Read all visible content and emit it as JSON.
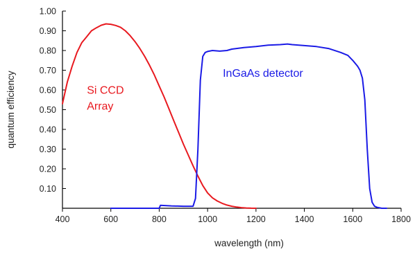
{
  "chart_data": {
    "type": "line",
    "title": "",
    "xlabel": "wavelength (nm)",
    "ylabel": "quantum efficiency",
    "xlim": [
      400,
      1800
    ],
    "ylim": [
      0,
      1.0
    ],
    "x_ticks": [
      "400",
      "600",
      "800",
      "1000",
      "1200",
      "1400",
      "1600",
      "1800"
    ],
    "y_ticks": [
      "0.10",
      "0.20",
      "0.30",
      "0.40",
      "0.50",
      "0.60",
      "0.70",
      "0.80",
      "0.90",
      "1.00"
    ],
    "grid": false,
    "legend": "none",
    "series": [
      {
        "name_lines": [
          "Si CCD",
          "Array"
        ],
        "color": "#e8191f",
        "x": [
          400,
          420,
          440,
          460,
          480,
          500,
          520,
          540,
          560,
          580,
          600,
          620,
          640,
          660,
          680,
          700,
          720,
          740,
          760,
          780,
          800,
          820,
          840,
          860,
          880,
          900,
          920,
          940,
          960,
          980,
          1000,
          1020,
          1040,
          1060,
          1080,
          1100,
          1120,
          1140,
          1160,
          1180,
          1200
        ],
        "y": [
          0.53,
          0.64,
          0.72,
          0.79,
          0.84,
          0.87,
          0.9,
          0.915,
          0.928,
          0.935,
          0.933,
          0.927,
          0.918,
          0.9,
          0.875,
          0.845,
          0.81,
          0.77,
          0.725,
          0.675,
          0.62,
          0.565,
          0.505,
          0.445,
          0.385,
          0.325,
          0.27,
          0.215,
          0.163,
          0.115,
          0.078,
          0.053,
          0.037,
          0.025,
          0.016,
          0.01,
          0.006,
          0.003,
          0.0015,
          0.0005,
          0.0
        ]
      },
      {
        "name": "InGaAs detector",
        "color": "#1a1ae6",
        "x": [
          600,
          800,
          805,
          850,
          900,
          940,
          950,
          960,
          970,
          980,
          990,
          1000,
          1020,
          1050,
          1080,
          1100,
          1150,
          1200,
          1250,
          1300,
          1330,
          1350,
          1400,
          1450,
          1500,
          1550,
          1580,
          1600,
          1620,
          1630,
          1640,
          1650,
          1660,
          1670,
          1680,
          1690,
          1700,
          1720,
          1740
        ],
        "y": [
          0.0,
          0.0,
          0.015,
          0.012,
          0.01,
          0.01,
          0.05,
          0.3,
          0.65,
          0.77,
          0.79,
          0.795,
          0.8,
          0.797,
          0.8,
          0.807,
          0.815,
          0.82,
          0.827,
          0.83,
          0.833,
          0.83,
          0.825,
          0.82,
          0.81,
          0.79,
          0.775,
          0.75,
          0.72,
          0.7,
          0.66,
          0.55,
          0.3,
          0.1,
          0.03,
          0.01,
          0.005,
          0.0,
          0.0
        ]
      }
    ]
  }
}
